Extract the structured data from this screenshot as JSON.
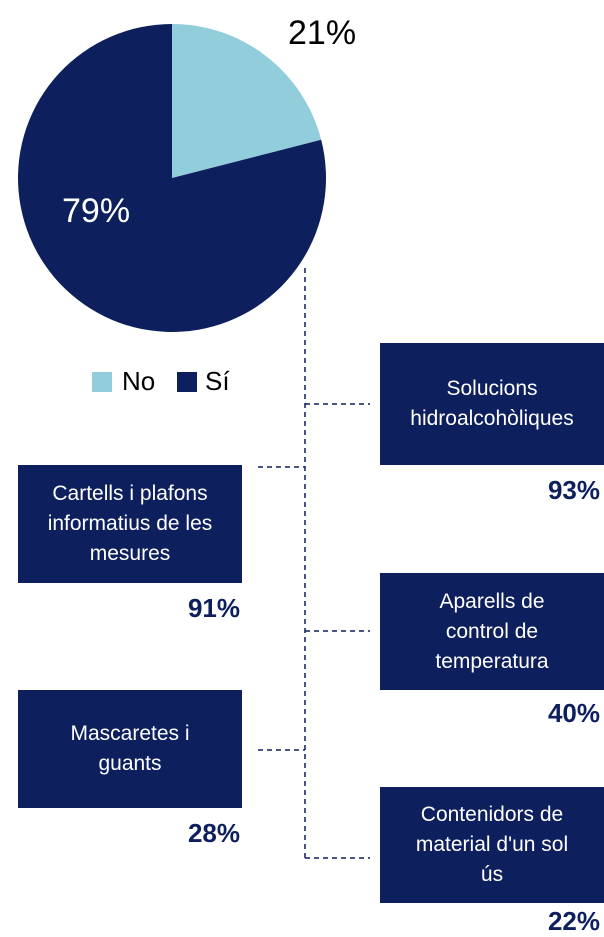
{
  "chart_data": {
    "type": "pie",
    "categories": [
      "No",
      "Sí"
    ],
    "values": [
      21,
      79
    ],
    "value_labels": [
      "21%",
      "79%"
    ],
    "colors": [
      "#92cddc",
      "#0d1f5c"
    ],
    "legend": "bottom"
  },
  "items": [
    {
      "lines": [
        "Solucions",
        "hidroalcohòliques"
      ],
      "percent": "93%"
    },
    {
      "lines": [
        "Cartells i plafons",
        "informatius de les",
        "mesures"
      ],
      "percent": "91%"
    },
    {
      "lines": [
        "Aparells de",
        "control de",
        "temperatura"
      ],
      "percent": "40%"
    },
    {
      "lines": [
        "Mascaretes i",
        "guants"
      ],
      "percent": "28%"
    },
    {
      "lines": [
        "Contenidors de",
        "material d'un sol",
        "ús"
      ],
      "percent": "22%"
    }
  ]
}
